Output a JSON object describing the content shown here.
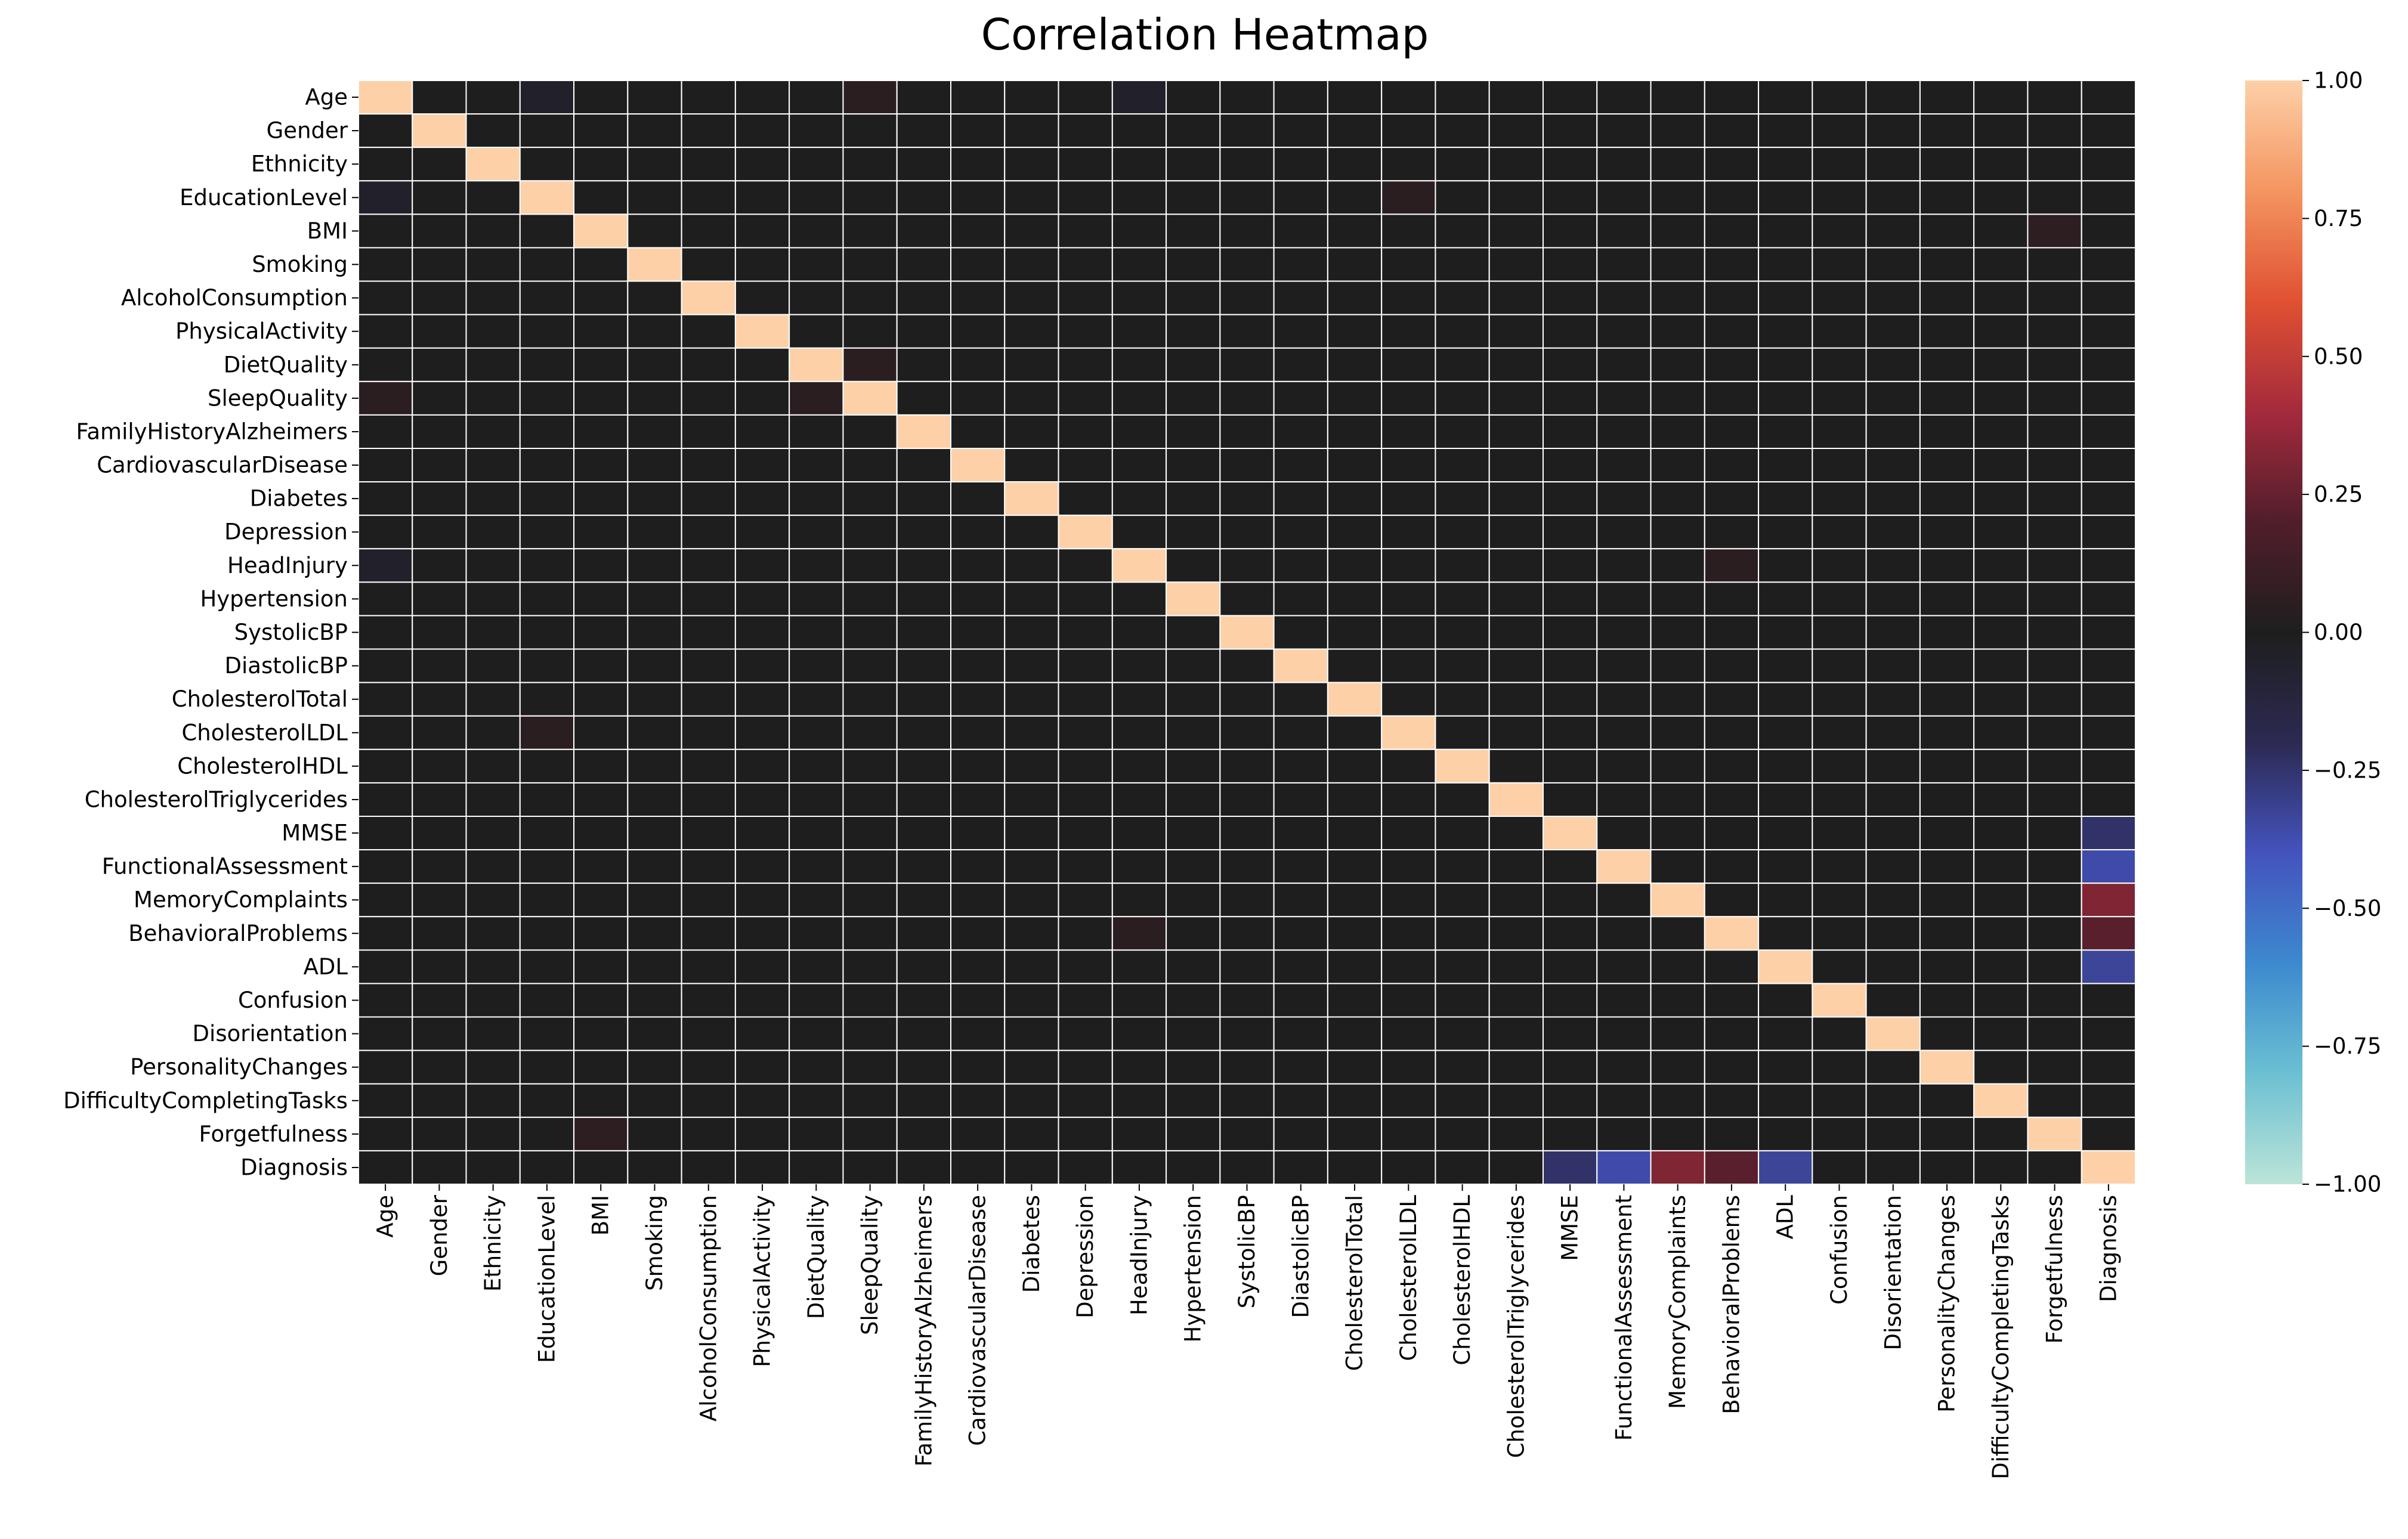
{
  "chart_data": {
    "type": "heatmap",
    "title": "Correlation Heatmap",
    "xlabel": "",
    "ylabel": "",
    "variables": [
      "Age",
      "Gender",
      "Ethnicity",
      "EducationLevel",
      "BMI",
      "Smoking",
      "AlcoholConsumption",
      "PhysicalActivity",
      "DietQuality",
      "SleepQuality",
      "FamilyHistoryAlzheimers",
      "CardiovascularDisease",
      "Diabetes",
      "Depression",
      "HeadInjury",
      "Hypertension",
      "SystolicBP",
      "DiastolicBP",
      "CholesterolTotal",
      "CholesterolLDL",
      "CholesterolHDL",
      "CholesterolTriglycerides",
      "MMSE",
      "FunctionalAssessment",
      "MemoryComplaints",
      "BehavioralProblems",
      "ADL",
      "Confusion",
      "Disorientation",
      "PersonalityChanges",
      "DifficultyCompletingTasks",
      "Forgetfulness",
      "Diagnosis"
    ],
    "diagonal_value": 1.0,
    "off_diagonal_default": 0.0,
    "notable_correlations": [
      {
        "row": "MMSE",
        "col": "Diagnosis",
        "value": -0.24
      },
      {
        "row": "FunctionalAssessment",
        "col": "Diagnosis",
        "value": -0.36
      },
      {
        "row": "MemoryComplaints",
        "col": "Diagnosis",
        "value": 0.31
      },
      {
        "row": "BehavioralProblems",
        "col": "Diagnosis",
        "value": 0.22
      },
      {
        "row": "ADL",
        "col": "Diagnosis",
        "value": -0.33
      },
      {
        "row": "Age",
        "col": "SleepQuality",
        "value": 0.05
      },
      {
        "row": "BMI",
        "col": "Forgetfulness",
        "value": 0.06
      },
      {
        "row": "EducationLevel",
        "col": "CholesterolLDL",
        "value": 0.05
      },
      {
        "row": "HeadInjury",
        "col": "BehavioralProblems",
        "value": 0.05
      },
      {
        "row": "DietQuality",
        "col": "SleepQuality",
        "value": 0.05
      },
      {
        "row": "Age",
        "col": "EducationLevel",
        "value": -0.05
      },
      {
        "row": "Age",
        "col": "HeadInjury",
        "value": -0.05
      }
    ],
    "colorbar": {
      "min": -1.0,
      "max": 1.0,
      "ticks": [
        "1.00",
        "0.75",
        "0.50",
        "0.25",
        "0.00",
        "−0.25",
        "−0.50",
        "−0.75",
        "−1.00"
      ],
      "colormap": "icefire",
      "stops": [
        "#bce4d8",
        "#6cc0d2",
        "#3d89cf",
        "#4453be",
        "#2c2a52",
        "#1e1e1e",
        "#511e2b",
        "#a42a3c",
        "#e05132",
        "#f49561",
        "#fdd0a8"
      ]
    },
    "grid": false,
    "cell_border_color": "#ffffff"
  }
}
